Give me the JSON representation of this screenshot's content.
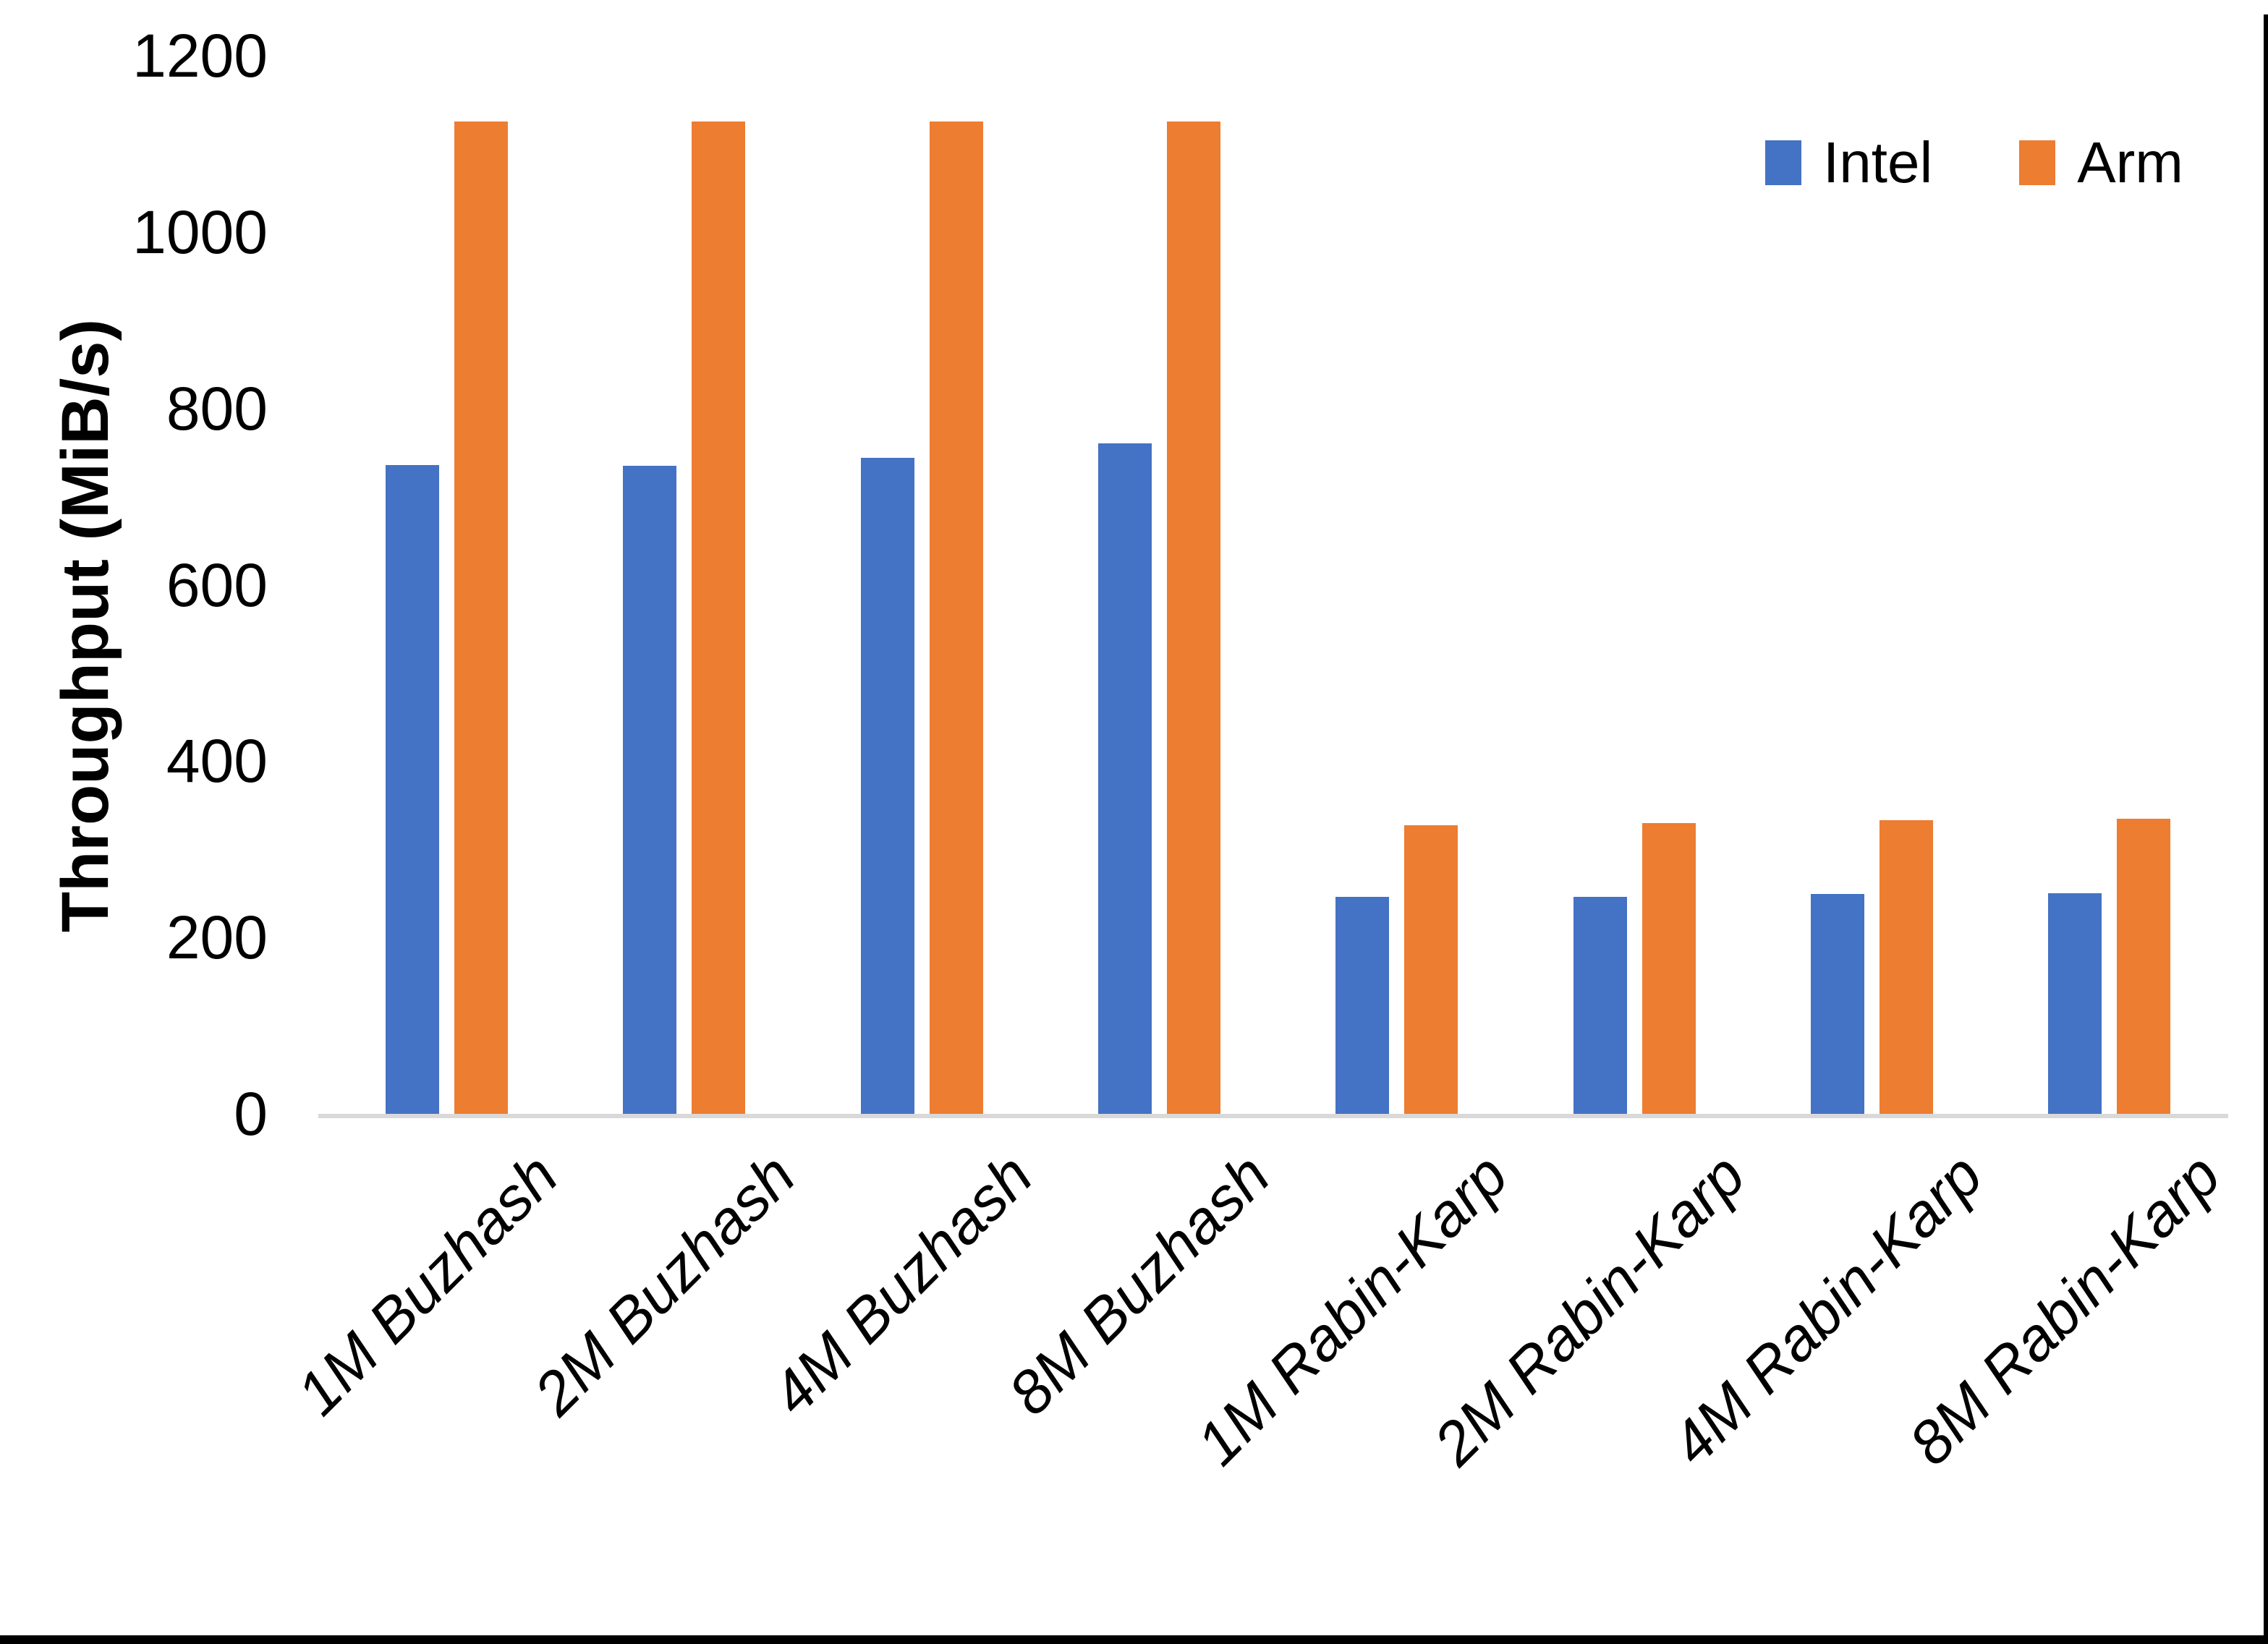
{
  "chart_data": {
    "type": "bar",
    "title": "",
    "xlabel": "",
    "ylabel": "Throughput (MiB/s)",
    "ylim": [
      0,
      1200
    ],
    "yticks": [
      0,
      200,
      400,
      600,
      800,
      1000,
      1200
    ],
    "grid": false,
    "legend_position": "top-right",
    "categories": [
      "1M Buzhash",
      "2M Buzhash",
      "4M Buzhash",
      "8M Buzhash",
      "1M Rabin-Karp",
      "2M Rabin-Karp",
      "4M Rabin-Karp",
      "8M Rabin-Karp"
    ],
    "series": [
      {
        "name": "Intel",
        "color": "#4472C4",
        "values": [
          736,
          735,
          744,
          760,
          246,
          246,
          249,
          250
        ]
      },
      {
        "name": "Arm",
        "color": "#ED7D31",
        "values": [
          1125,
          1125,
          1125,
          1125,
          327,
          330,
          333,
          335
        ]
      }
    ],
    "axis_line_color": "#D9D9D9"
  }
}
